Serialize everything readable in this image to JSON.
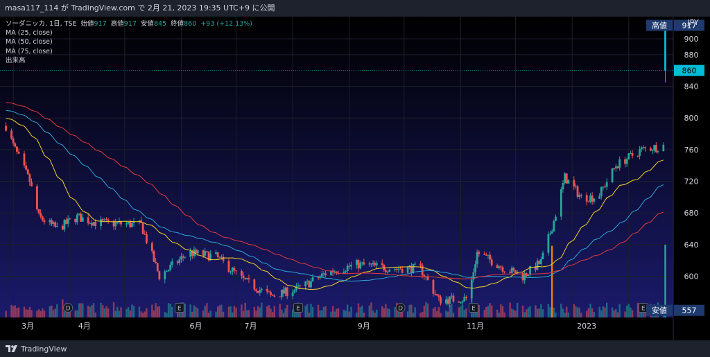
{
  "header": {
    "text": "masa117_114 が TradingView.com で 2月 21, 2023 19:35 UTC+9 に公開"
  },
  "legend": {
    "symbol": "ソーダニッカ, 1日, TSE",
    "open_label": "始値",
    "open": "917",
    "high_label": "高値",
    "high": "917",
    "low_label": "安値",
    "low": "845",
    "close_label": "終値",
    "close": "860",
    "change": "+93 (+12.13%)",
    "indicators": [
      "MA (25, close)",
      "MA (50, close)",
      "MA (75, close)",
      "出来高"
    ]
  },
  "price_axis": {
    "unit": "JPY",
    "ticks": [
      600,
      640,
      680,
      720,
      760,
      800,
      840,
      880,
      900
    ],
    "high_label": "高値",
    "high_value": "917",
    "last_value": "860",
    "low_label": "安値",
    "low_value": "557"
  },
  "time_axis": {
    "labels": [
      "3月",
      "4月",
      "6月",
      "7月",
      "9月",
      "11月",
      "2023"
    ]
  },
  "event_markers": [
    "D",
    "E",
    "E",
    "D",
    "E",
    "E"
  ],
  "footer": {
    "brand": "TradingView"
  },
  "colors": {
    "up": "#26a69a",
    "down": "#ef5350",
    "ma25": "#f5d327",
    "ma50": "#2aa7d8",
    "ma75": "#e4393b",
    "bg_top": "#000000",
    "bg_bottom": "#1a1a6b",
    "last_price": "#00bcd4"
  },
  "chart_data": {
    "type": "candlestick",
    "title": "ソーダニッカ, 1日, TSE",
    "x_labels": [
      "3月",
      "4月",
      "6月",
      "7月",
      "9月",
      "11月",
      "2023"
    ],
    "ylim": [
      548,
      928
    ],
    "anchors": [
      {
        "date": "2022-02-25",
        "price": 790
      },
      {
        "date": "2022-03-01",
        "price": 765
      },
      {
        "date": "2022-03-10",
        "price": 720
      },
      {
        "date": "2022-03-15",
        "price": 675
      },
      {
        "date": "2022-03-25",
        "price": 660
      },
      {
        "date": "2022-04-05",
        "price": 675
      },
      {
        "date": "2022-04-15",
        "price": 668
      },
      {
        "date": "2022-05-10",
        "price": 665
      },
      {
        "date": "2022-05-20",
        "price": 600
      },
      {
        "date": "2022-06-05",
        "price": 630
      },
      {
        "date": "2022-06-20",
        "price": 625
      },
      {
        "date": "2022-07-05",
        "price": 595
      },
      {
        "date": "2022-07-20",
        "price": 575
      },
      {
        "date": "2022-08-05",
        "price": 585
      },
      {
        "date": "2022-08-20",
        "price": 605
      },
      {
        "date": "2022-09-05",
        "price": 615
      },
      {
        "date": "2022-09-25",
        "price": 610
      },
      {
        "date": "2022-10-10",
        "price": 610
      },
      {
        "date": "2022-10-20",
        "price": 570
      },
      {
        "date": "2022-11-05",
        "price": 572
      },
      {
        "date": "2022-11-10",
        "price": 630
      },
      {
        "date": "2022-11-25",
        "price": 610
      },
      {
        "date": "2022-12-05",
        "price": 600
      },
      {
        "date": "2022-12-15",
        "price": 618
      },
      {
        "date": "2022-12-22",
        "price": 670
      },
      {
        "date": "2022-12-28",
        "price": 725
      },
      {
        "date": "2023-01-06",
        "price": 700
      },
      {
        "date": "2023-01-15",
        "price": 700
      },
      {
        "date": "2023-01-25",
        "price": 740
      },
      {
        "date": "2023-02-08",
        "price": 760
      },
      {
        "date": "2023-02-20",
        "price": 765
      }
    ],
    "last_bar": {
      "date": "2023-02-21",
      "open": 917,
      "high": 917,
      "low": 845,
      "close": 860
    },
    "series": [
      {
        "name": "MA (25, close)"
      },
      {
        "name": "MA (50, close)"
      },
      {
        "name": "MA (75, close)"
      },
      {
        "name": "出来高"
      }
    ]
  }
}
